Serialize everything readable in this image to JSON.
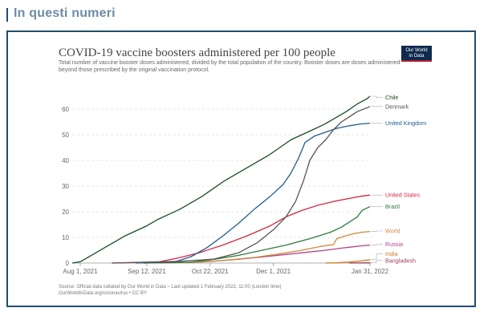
{
  "header": {
    "title": "In questi numeri"
  },
  "logo": {
    "line1": "Our World",
    "line2": "in Data"
  },
  "source": {
    "line1": "Source: Official data collated by Our World in Data – Last updated 1 February 2022, 11:00 (London time)",
    "line2": "OurWorldInData.org/coronavirus • CC BY"
  },
  "chart_data": {
    "type": "line",
    "title": "COVID-19 vaccine boosters administered per 100 people",
    "subtitle": "Total number of vaccine booster doses administered, divided by the total population of the country. Booster doses are doses administered beyond those prescribed by the original vaccination protocol.",
    "x_ticks": [
      "Aug 1, 2021",
      "Sep 12, 2021",
      "Oct 22, 2021",
      "Dec 1, 2021",
      "Jan 31, 2022"
    ],
    "x_tick_days": [
      0,
      42,
      82,
      122,
      183
    ],
    "xlim_days": [
      0,
      183
    ],
    "y_ticks": [
      0,
      10,
      20,
      30,
      40,
      50,
      60
    ],
    "ylim": [
      0,
      65
    ],
    "grid": "horizontal dashed",
    "legend": "line-end labels",
    "series": [
      {
        "name": "Chile",
        "color": "#1a4d1f",
        "points": [
          [
            -5,
            0
          ],
          [
            0,
            0.5
          ],
          [
            7,
            3
          ],
          [
            14,
            5.5
          ],
          [
            21,
            8
          ],
          [
            28,
            10.5
          ],
          [
            35,
            12.5
          ],
          [
            42,
            14.5
          ],
          [
            49,
            17
          ],
          [
            56,
            19
          ],
          [
            63,
            21
          ],
          [
            70,
            23.5
          ],
          [
            77,
            26
          ],
          [
            84,
            29
          ],
          [
            91,
            32
          ],
          [
            98,
            34.5
          ],
          [
            105,
            37
          ],
          [
            112,
            39.5
          ],
          [
            119,
            42
          ],
          [
            126,
            45
          ],
          [
            133,
            48
          ],
          [
            140,
            50
          ],
          [
            147,
            52
          ],
          [
            154,
            54
          ],
          [
            161,
            56.5
          ],
          [
            168,
            59
          ],
          [
            175,
            62
          ],
          [
            181,
            64
          ],
          [
            183,
            65
          ]
        ]
      },
      {
        "name": "Denmark",
        "color": "#555555",
        "points": [
          [
            20,
            0
          ],
          [
            42,
            0.3
          ],
          [
            63,
            0.7
          ],
          [
            84,
            1.5
          ],
          [
            100,
            4
          ],
          [
            112,
            8
          ],
          [
            122,
            13
          ],
          [
            130,
            18
          ],
          [
            136,
            24
          ],
          [
            141,
            32
          ],
          [
            145,
            40
          ],
          [
            150,
            45
          ],
          [
            155,
            48
          ],
          [
            160,
            52
          ],
          [
            165,
            55
          ],
          [
            170,
            57
          ],
          [
            175,
            59
          ],
          [
            183,
            61
          ]
        ]
      },
      {
        "name": "United Kingdom",
        "color": "#1d5d8f",
        "points": [
          [
            35,
            0
          ],
          [
            60,
            0.5
          ],
          [
            70,
            2.5
          ],
          [
            80,
            6
          ],
          [
            90,
            10.5
          ],
          [
            100,
            15.5
          ],
          [
            110,
            21
          ],
          [
            120,
            26
          ],
          [
            128,
            30.5
          ],
          [
            133,
            35
          ],
          [
            138,
            41
          ],
          [
            142,
            47
          ],
          [
            148,
            49.5
          ],
          [
            155,
            51
          ],
          [
            162,
            52.5
          ],
          [
            170,
            53.5
          ],
          [
            177,
            54.2
          ],
          [
            183,
            54.5
          ]
        ]
      },
      {
        "name": "United States",
        "color": "#d6263f",
        "points": [
          [
            20,
            0
          ],
          [
            50,
            0.5
          ],
          [
            62,
            2
          ],
          [
            75,
            4
          ],
          [
            90,
            7
          ],
          [
            105,
            10.5
          ],
          [
            120,
            14.5
          ],
          [
            130,
            18
          ],
          [
            140,
            20.5
          ],
          [
            150,
            22.5
          ],
          [
            160,
            24
          ],
          [
            170,
            25.2
          ],
          [
            177,
            26
          ],
          [
            183,
            26.5
          ]
        ]
      },
      {
        "name": "Brazil",
        "color": "#2f7a3a",
        "points": [
          [
            40,
            0
          ],
          [
            70,
            0.3
          ],
          [
            85,
            1.5
          ],
          [
            100,
            3
          ],
          [
            115,
            5
          ],
          [
            130,
            7
          ],
          [
            145,
            9.5
          ],
          [
            158,
            12
          ],
          [
            165,
            14
          ],
          [
            170,
            16
          ],
          [
            175,
            18
          ],
          [
            178,
            20.5
          ],
          [
            183,
            22
          ]
        ]
      },
      {
        "name": "World",
        "color": "#cf8a3a",
        "points": [
          [
            40,
            0
          ],
          [
            70,
            0.2
          ],
          [
            90,
            1
          ],
          [
            110,
            2.2
          ],
          [
            125,
            3.5
          ],
          [
            140,
            5
          ],
          [
            152,
            6.5
          ],
          [
            160,
            7.2
          ],
          [
            162,
            9.5
          ],
          [
            167,
            10.5
          ],
          [
            173,
            11.5
          ],
          [
            178,
            12
          ],
          [
            183,
            12.3
          ]
        ]
      },
      {
        "name": "Russia",
        "color": "#b5408c",
        "points": [
          [
            50,
            0
          ],
          [
            80,
            0.5
          ],
          [
            100,
            1.5
          ],
          [
            120,
            2.7
          ],
          [
            140,
            4
          ],
          [
            155,
            5
          ],
          [
            165,
            5.8
          ],
          [
            172,
            6.3
          ],
          [
            177,
            6.7
          ],
          [
            183,
            7
          ]
        ]
      },
      {
        "name": "India",
        "color": "#d07b1e",
        "points": [
          [
            155,
            0
          ],
          [
            163,
            0.1
          ],
          [
            170,
            0.4
          ],
          [
            177,
            0.8
          ],
          [
            183,
            1.3
          ]
        ]
      },
      {
        "name": "Bangladesh",
        "color": "#9a3d5e",
        "points": [
          [
            170,
            0
          ],
          [
            177,
            0.05
          ],
          [
            183,
            0.1
          ]
        ]
      }
    ],
    "end_labels": [
      {
        "name": "Chile",
        "y": 64.5
      },
      {
        "name": "Denmark",
        "y": 61
      },
      {
        "name": "United Kingdom",
        "y": 54.5
      },
      {
        "name": "United States",
        "y": 26.5
      },
      {
        "name": "Brazil",
        "y": 22
      },
      {
        "name": "World",
        "y": 12.5
      },
      {
        "name": "Russia",
        "y": 7.3
      },
      {
        "name": "India",
        "y": 3.6
      },
      {
        "name": "Bangladesh",
        "y": 1.0
      }
    ]
  }
}
